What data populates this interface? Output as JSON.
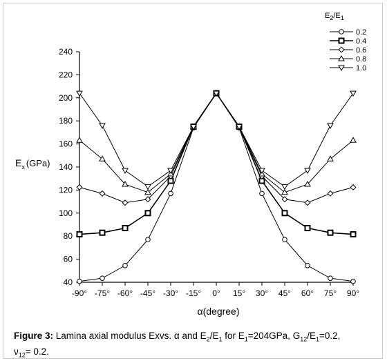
{
  "chart_data": {
    "type": "line",
    "title": "",
    "xlabel": "α(degree)",
    "ylabel": "E",
    "ylabel_sub": "x",
    "ylabel_unit": "(GPa)",
    "x": [
      -90,
      -75,
      -60,
      -45,
      -30,
      -15,
      0,
      15,
      30,
      45,
      60,
      75,
      90
    ],
    "x_tick_labels": [
      "-90°",
      "-75°",
      "-60°",
      "-45°",
      "-30°",
      "-15°",
      "0°",
      "15°",
      "30°",
      "45°",
      "60°",
      "75°",
      "90°"
    ],
    "ylim": [
      40,
      240
    ],
    "y_ticks": [
      40,
      60,
      80,
      100,
      120,
      140,
      160,
      180,
      200,
      220,
      240
    ],
    "grid": false,
    "legend_position": "top-right",
    "legend_title": "E",
    "legend_title_sub1": "2",
    "legend_title_mid": "/E",
    "legend_title_sub2": "1",
    "series": [
      {
        "name": "0.2",
        "marker": "circle",
        "values": [
          40.8,
          43.5,
          54.5,
          77,
          117,
          174,
          204,
          174,
          117,
          77,
          54.5,
          43.5,
          40.8
        ]
      },
      {
        "name": "0.4",
        "marker": "square",
        "values": [
          81.6,
          83,
          87,
          100,
          128,
          175,
          204,
          175,
          128,
          100,
          87,
          83,
          81.6
        ]
      },
      {
        "name": "0.6",
        "marker": "diamond",
        "values": [
          122.4,
          117,
          109,
          112,
          132,
          175,
          204,
          175,
          132,
          112,
          109,
          117,
          122.4
        ]
      },
      {
        "name": "0.8",
        "marker": "triangle",
        "values": [
          163.2,
          147,
          125,
          118,
          134,
          175,
          204,
          175,
          134,
          118,
          125,
          147,
          163.2
        ]
      },
      {
        "name": "1.0",
        "marker": "triangle-down",
        "values": [
          204,
          176,
          137,
          123,
          137,
          175,
          204,
          175,
          137,
          123,
          137,
          176,
          204
        ]
      }
    ]
  },
  "caption": {
    "label": "Figure 3:",
    "t1": " Lamina axial modulus Exvs. α and E",
    "s1": "2",
    "t2": "/E",
    "s2": "1",
    "t3": " for E",
    "s3": "1",
    "t4": "=204GPa, G",
    "s4": "12",
    "t5": "/E",
    "s5": "1",
    "t6": "=0.2,",
    "t7": "ν",
    "s7": "12",
    "t8": "= 0.2."
  }
}
